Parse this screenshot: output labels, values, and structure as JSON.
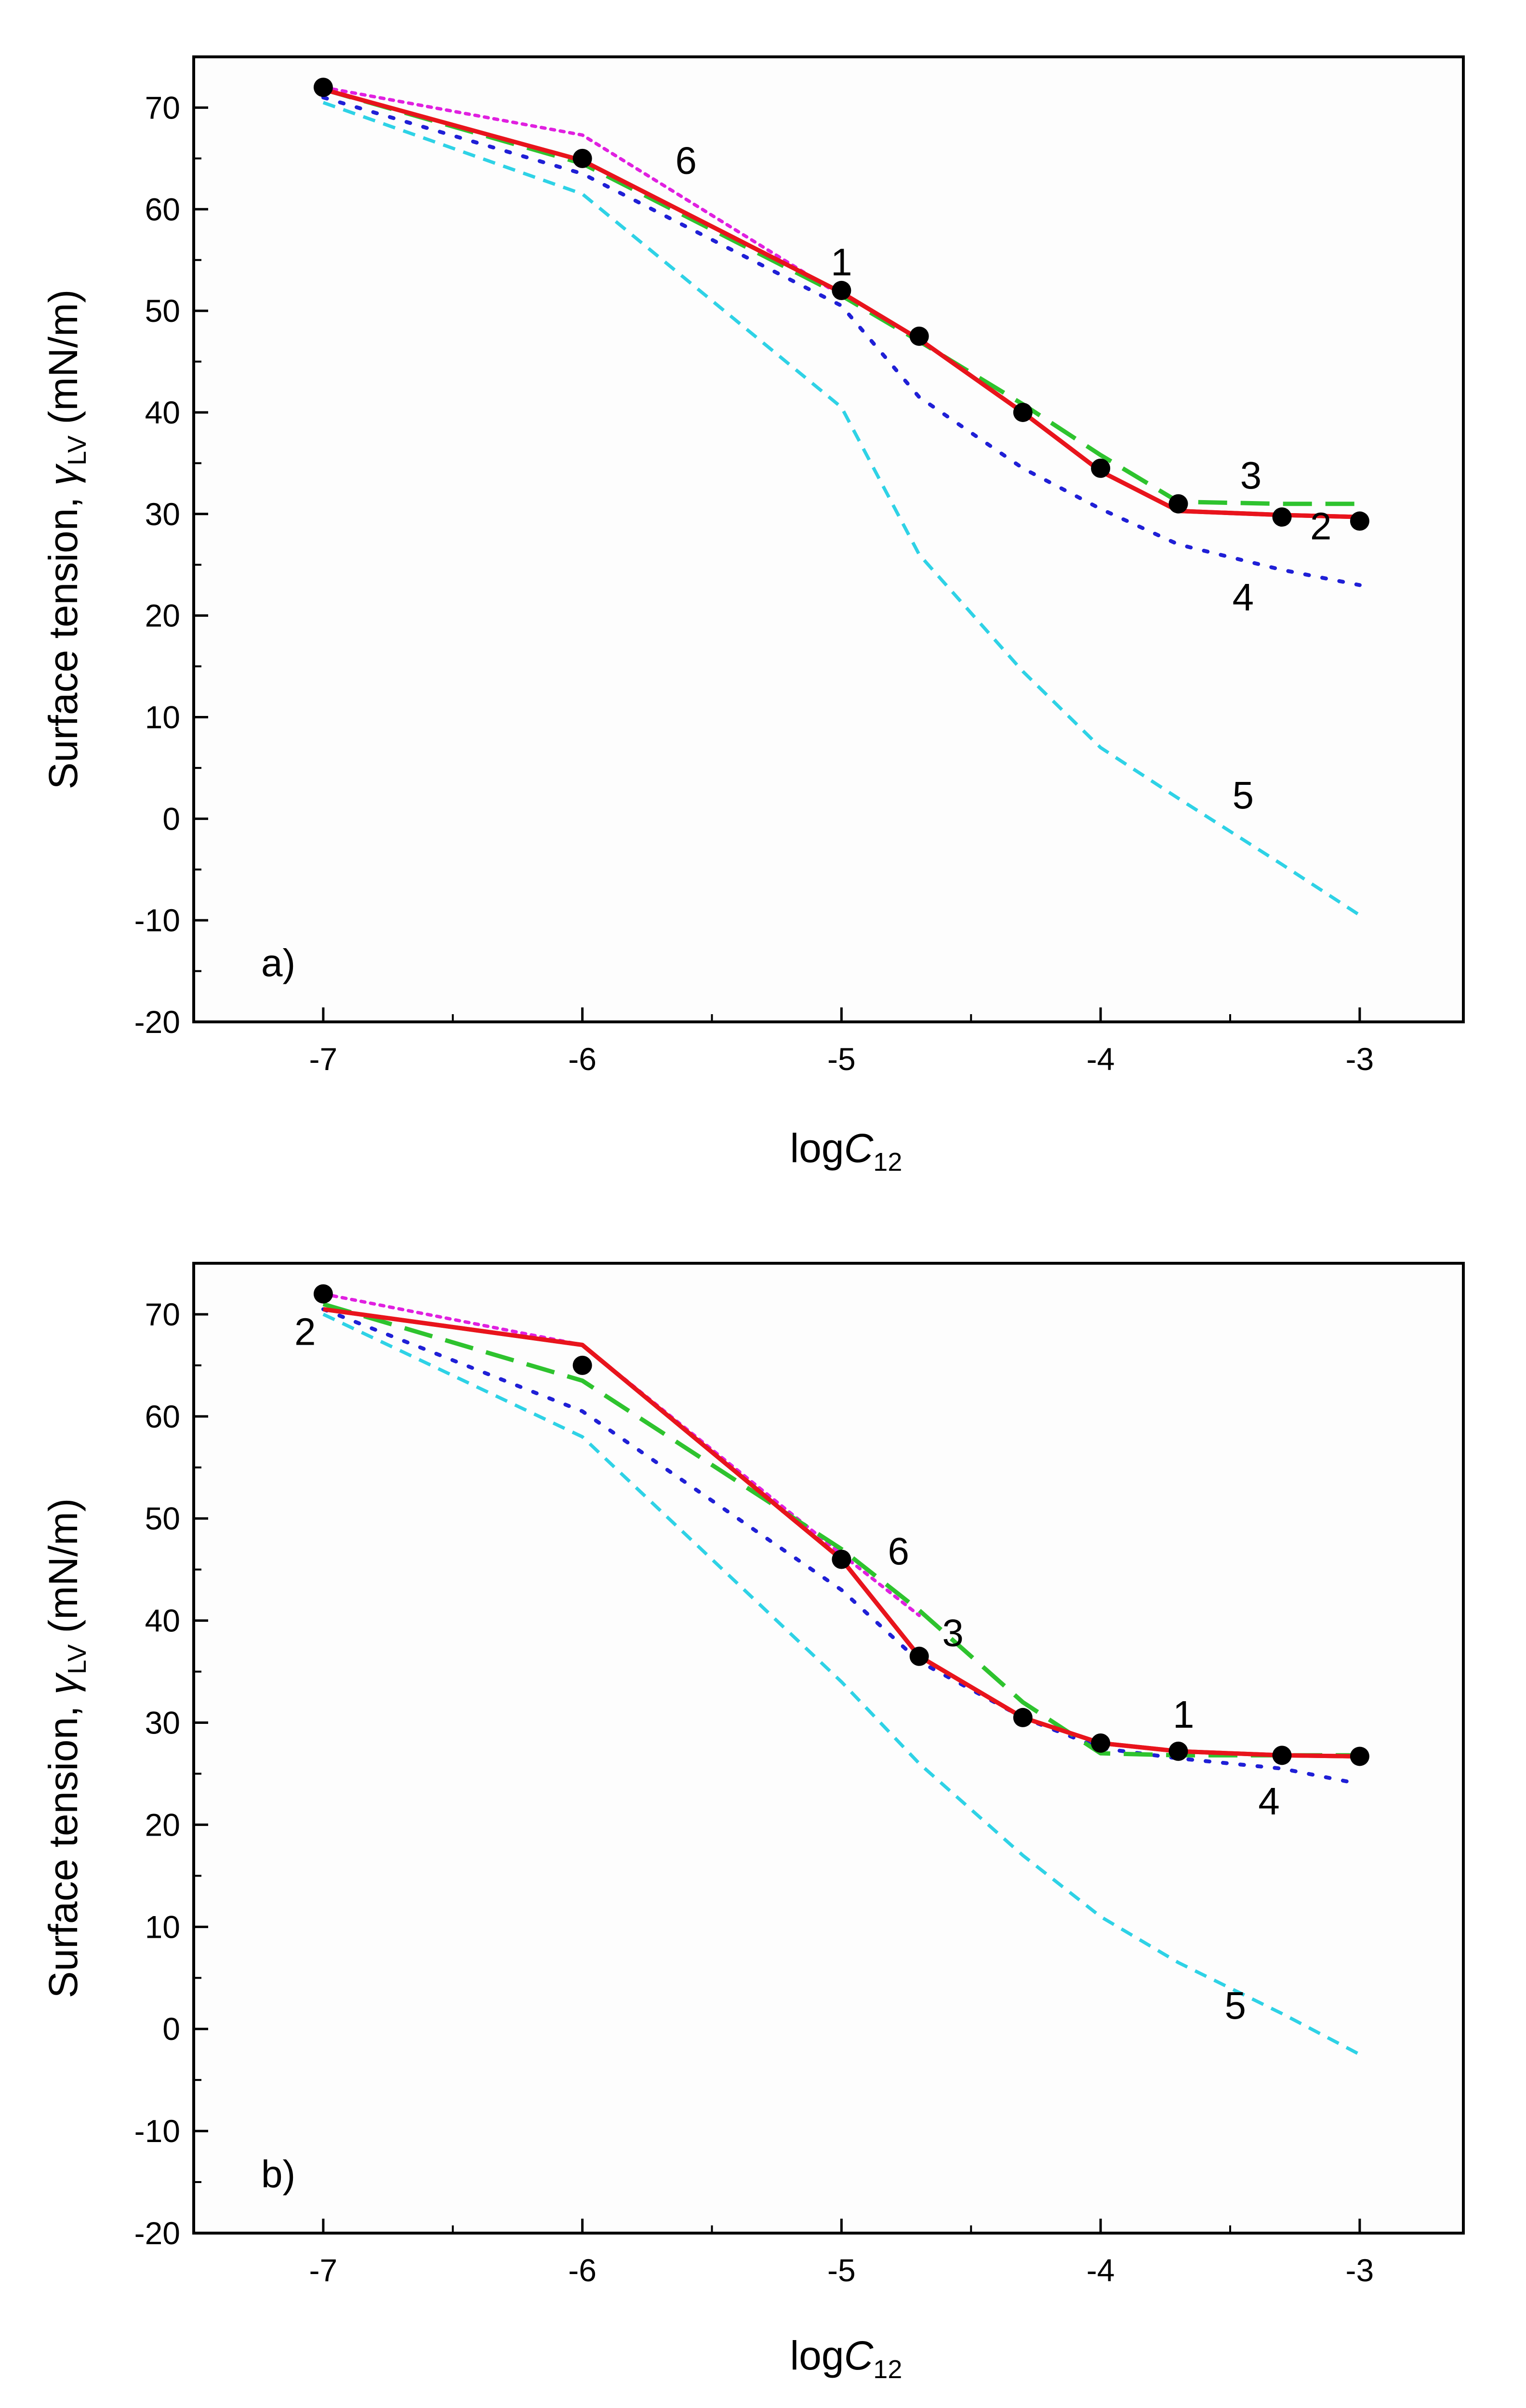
{
  "chart_data": [
    {
      "type": "line",
      "panel_label": "a)",
      "xlabel_main": "log",
      "xlabel_italic": "C",
      "xlabel_sub": "12",
      "ylabel_main": "Surface tension, ",
      "ylabel_gamma": "γ",
      "ylabel_sub": "LV",
      "ylabel_unit": " (mN/m)",
      "xlim": [
        -7.5,
        -2.6
      ],
      "ylim": [
        -20,
        75
      ],
      "xticks": [
        -7,
        -6,
        -5,
        -4,
        -3
      ],
      "xtick_labels": [
        "-7",
        "-6",
        "-5",
        "-4",
        "-3"
      ],
      "yticks": [
        -20,
        -10,
        0,
        10,
        20,
        30,
        40,
        50,
        60,
        70
      ],
      "ytick_labels": [
        "-20",
        "-10",
        "0",
        "10",
        "20",
        "30",
        "40",
        "50",
        "60",
        "70"
      ],
      "points": {
        "x": [
          -7,
          -6,
          -5,
          -4.7,
          -4.3,
          -4,
          -3.7,
          -3.3,
          -3
        ],
        "y": [
          72,
          65,
          52,
          47.5,
          40,
          34.5,
          31,
          29.7,
          29.3
        ]
      },
      "series": [
        {
          "id": "1",
          "x": [
            -7,
            -6,
            -5,
            -4.7,
            -4.3,
            -4,
            -3.7,
            -3.3,
            -3
          ],
          "y": [
            71.8,
            64.8,
            51.8,
            47.2,
            40,
            34.2,
            30.3,
            29.9,
            29.7
          ]
        },
        {
          "id": "2",
          "x": [
            -7,
            -6,
            -5,
            -4.7,
            -4.3,
            -4,
            -3.7,
            -3.3,
            -3
          ],
          "y": [
            71.8,
            64.8,
            51.8,
            47.2,
            40,
            34.2,
            30.3,
            29.9,
            29.7
          ]
        },
        {
          "id": "3",
          "x": [
            -7,
            -6,
            -5,
            -4.7,
            -4.3,
            -4,
            -3.7,
            -3.3,
            -3
          ],
          "y": [
            71.8,
            64.5,
            51.5,
            47,
            40.8,
            35.8,
            31.2,
            31,
            31
          ]
        },
        {
          "id": "4",
          "x": [
            -7,
            -6,
            -5,
            -4.7,
            -4.3,
            -4,
            -3.7,
            -3.3,
            -3
          ],
          "y": [
            71,
            63.5,
            50.5,
            41.5,
            34.5,
            30.5,
            27,
            24.5,
            23
          ]
        },
        {
          "id": "5",
          "x": [
            -7,
            -6,
            -5,
            -4.7,
            -4.3,
            -4,
            -3.7,
            -3.3,
            -3
          ],
          "y": [
            70.5,
            61.5,
            40.5,
            26,
            14.5,
            7,
            2,
            -4.5,
            -9.5
          ]
        },
        {
          "id": "6",
          "x": [
            -7,
            -6,
            -5
          ],
          "y": [
            72,
            67.3,
            51.5
          ]
        }
      ],
      "annotations": [
        {
          "text": "1",
          "x": -5,
          "y": 53.5
        },
        {
          "text": "2",
          "x": -3.15,
          "y": 27.5
        },
        {
          "text": "3",
          "x": -3.42,
          "y": 32.5
        },
        {
          "text": "4",
          "x": -3.45,
          "y": 20.5
        },
        {
          "text": "5",
          "x": -3.45,
          "y": 1
        },
        {
          "text": "6",
          "x": -5.6,
          "y": 63.5
        }
      ]
    },
    {
      "type": "line",
      "panel_label": "b)",
      "xlabel_main": "log",
      "xlabel_italic": "C",
      "xlabel_sub": "12",
      "ylabel_main": "Surface tension, ",
      "ylabel_gamma": "γ",
      "ylabel_sub": "LV",
      "ylabel_unit": " (mN/m)",
      "xlim": [
        -7.5,
        -2.6
      ],
      "ylim": [
        -20,
        75
      ],
      "xticks": [
        -7,
        -6,
        -5,
        -4,
        -3
      ],
      "xtick_labels": [
        "-7",
        "-6",
        "-5",
        "-4",
        "-3"
      ],
      "yticks": [
        -20,
        -10,
        0,
        10,
        20,
        30,
        40,
        50,
        60,
        70
      ],
      "ytick_labels": [
        "-20",
        "-10",
        "0",
        "10",
        "20",
        "30",
        "40",
        "50",
        "60",
        "70"
      ],
      "points": {
        "x": [
          -7,
          -6,
          -5,
          -4.7,
          -4.3,
          -4,
          -3.7,
          -3.3,
          -3
        ],
        "y": [
          72,
          65,
          46,
          36.5,
          30.5,
          28,
          27.2,
          26.8,
          26.7
        ]
      },
      "series": [
        {
          "id": "1",
          "x": [
            -7,
            -6,
            -5,
            -4.7,
            -4.3,
            -4,
            -3.7,
            -3.3,
            -3
          ],
          "y": [
            70.5,
            67,
            46,
            36.5,
            30.5,
            28,
            27.2,
            26.8,
            26.7
          ]
        },
        {
          "id": "2",
          "x": [
            -7,
            -6,
            -5,
            -4.7,
            -4.3,
            -4,
            -3.7,
            -3.3,
            -3
          ],
          "y": [
            70.5,
            67,
            46,
            36.5,
            30.5,
            28,
            27.2,
            26.8,
            26.7
          ]
        },
        {
          "id": "3",
          "x": [
            -7,
            -6,
            -5,
            -4.7,
            -4.3,
            -4,
            -3.7,
            -3.3,
            -3
          ],
          "y": [
            71,
            63.5,
            47,
            41,
            32,
            27,
            26.8,
            26.8,
            26.8
          ]
        },
        {
          "id": "4",
          "x": [
            -7,
            -6,
            -5,
            -4.7,
            -4.3,
            -4,
            -3.7,
            -3.3,
            -3
          ],
          "y": [
            70.5,
            60.5,
            43,
            36,
            30.5,
            27.5,
            26.5,
            25.5,
            24
          ]
        },
        {
          "id": "5",
          "x": [
            -7,
            -6,
            -5,
            -4.7,
            -4.3,
            -4,
            -3.7,
            -3.3,
            -3
          ],
          "y": [
            70,
            58,
            34,
            26,
            17,
            11,
            6.5,
            1.5,
            -2.5
          ]
        },
        {
          "id": "6",
          "x": [
            -7,
            -6,
            -5,
            -4.7
          ],
          "y": [
            72,
            67,
            46.5,
            40.5
          ]
        }
      ],
      "annotations": [
        {
          "text": "1",
          "x": -3.68,
          "y": 29.5
        },
        {
          "text": "2",
          "x": -7.07,
          "y": 67
        },
        {
          "text": "3",
          "x": -4.57,
          "y": 37.5
        },
        {
          "text": "4",
          "x": -3.35,
          "y": 21
        },
        {
          "text": "5",
          "x": -3.48,
          "y": 1
        },
        {
          "text": "6",
          "x": -4.78,
          "y": 45.5
        }
      ]
    }
  ],
  "colors": {
    "1": "#e8141c",
    "2": "#e8141c",
    "3": "#2ec32e",
    "4": "#1f1fd6",
    "5": "#2ed2e6",
    "6": "#e020e0",
    "points": "#000000"
  }
}
